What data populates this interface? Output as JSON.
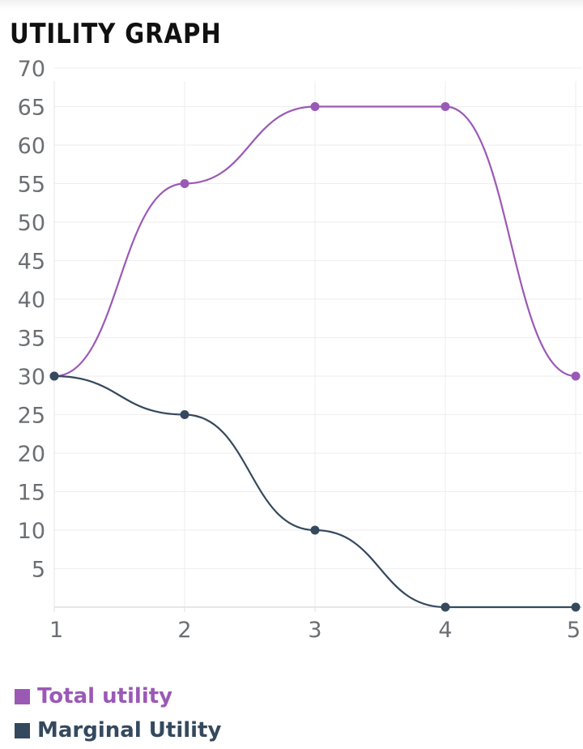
{
  "title": "UTILITY GRAPH",
  "chart_data": {
    "type": "line",
    "title": "UTILITY GRAPH",
    "x": [
      1,
      2,
      3,
      4,
      5
    ],
    "x_tick_labels": [
      "1",
      "2",
      "3",
      "4",
      "5"
    ],
    "y_ticks": [
      5,
      10,
      15,
      20,
      25,
      30,
      35,
      40,
      45,
      50,
      55,
      60,
      65,
      70
    ],
    "y_tick_labels": [
      "5",
      "10",
      "15",
      "20",
      "25",
      "30",
      "35",
      "40",
      "45",
      "50",
      "55",
      "60",
      "65",
      "70"
    ],
    "ylim": [
      0,
      70
    ],
    "xlim": [
      1,
      5
    ],
    "grid": true,
    "smooth": true,
    "legend_position": "bottom-left",
    "series": [
      {
        "name": "Total utility",
        "values": [
          30,
          55,
          65,
          65,
          30
        ],
        "color": "#9b59b6"
      },
      {
        "name": "Marginal Utility",
        "values": [
          30,
          25,
          10,
          0,
          0
        ],
        "color": "#34495e"
      }
    ]
  }
}
